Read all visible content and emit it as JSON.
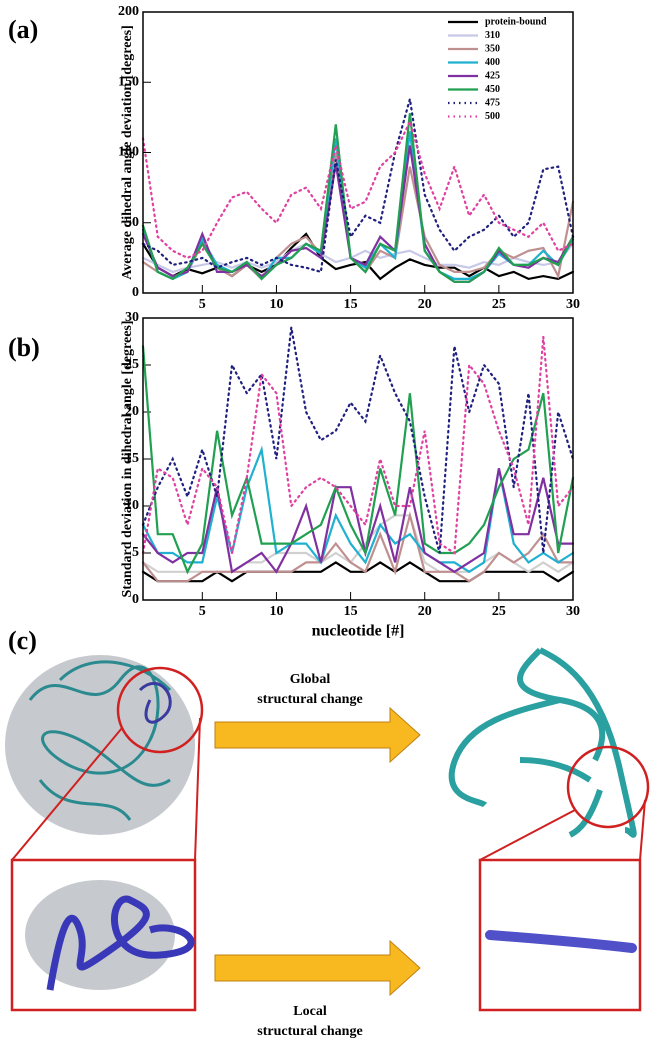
{
  "chart_data": [
    {
      "type": "line",
      "title": "(a)",
      "ylabel": "Average dihedral angle deviation [degrees]",
      "x": [
        1,
        2,
        3,
        4,
        5,
        6,
        7,
        8,
        9,
        10,
        11,
        12,
        13,
        14,
        15,
        16,
        17,
        18,
        19,
        20,
        21,
        22,
        23,
        24,
        25,
        26,
        27,
        28,
        29,
        30
      ],
      "xlim": [
        1,
        30
      ],
      "xticks": [
        5,
        10,
        15,
        20,
        25,
        30
      ],
      "ylim": [
        0,
        200
      ],
      "yticks": [
        0,
        50,
        100,
        150,
        200
      ],
      "legend": "upper right",
      "series": [
        {
          "name": "protein-bound",
          "color": "#000000",
          "style": "solid",
          "values": [
            35,
            18,
            12,
            17,
            14,
            18,
            12,
            20,
            15,
            20,
            32,
            42,
            25,
            17,
            20,
            22,
            10,
            18,
            24,
            20,
            18,
            18,
            12,
            18,
            12,
            15,
            10,
            12,
            10,
            15
          ]
        },
        {
          "name": "310",
          "color": "#c8c8e8",
          "style": "solid",
          "values": [
            25,
            20,
            15,
            18,
            20,
            22,
            18,
            22,
            18,
            22,
            30,
            35,
            28,
            22,
            25,
            30,
            25,
            28,
            30,
            25,
            20,
            20,
            18,
            22,
            20,
            25,
            22,
            20,
            22,
            35
          ]
        },
        {
          "name": "350",
          "color": "#c09090",
          "style": "solid",
          "values": [
            22,
            15,
            10,
            15,
            35,
            18,
            12,
            20,
            10,
            25,
            35,
            40,
            28,
            100,
            25,
            15,
            30,
            25,
            90,
            40,
            20,
            15,
            15,
            18,
            30,
            25,
            30,
            32,
            12,
            65
          ]
        },
        {
          "name": "400",
          "color": "#20b0d0",
          "style": "solid",
          "values": [
            45,
            15,
            10,
            15,
            38,
            20,
            15,
            22,
            10,
            25,
            25,
            35,
            28,
            110,
            25,
            18,
            35,
            25,
            115,
            30,
            15,
            10,
            10,
            15,
            28,
            20,
            20,
            30,
            20,
            38
          ]
        },
        {
          "name": "425",
          "color": "#8030a0",
          "style": "solid",
          "values": [
            42,
            18,
            12,
            15,
            42,
            15,
            15,
            20,
            12,
            20,
            30,
            32,
            25,
            92,
            25,
            20,
            40,
            30,
            105,
            35,
            15,
            8,
            8,
            15,
            30,
            20,
            18,
            25,
            22,
            40
          ]
        },
        {
          "name": "450",
          "color": "#20a050",
          "style": "solid",
          "values": [
            48,
            15,
            10,
            18,
            35,
            18,
            15,
            22,
            10,
            20,
            25,
            35,
            30,
            120,
            25,
            15,
            35,
            30,
            128,
            30,
            15,
            8,
            8,
            15,
            32,
            20,
            20,
            25,
            20,
            40
          ]
        },
        {
          "name": "475",
          "color": "#202080",
          "style": "dotted",
          "values": [
            35,
            30,
            20,
            22,
            25,
            18,
            22,
            25,
            20,
            25,
            20,
            18,
            15,
            95,
            40,
            55,
            50,
            100,
            138,
            70,
            45,
            30,
            40,
            45,
            55,
            40,
            50,
            88,
            90,
            40
          ]
        },
        {
          "name": "500",
          "color": "#e040a0",
          "style": "dotted",
          "values": [
            110,
            40,
            30,
            25,
            30,
            50,
            68,
            72,
            60,
            50,
            70,
            75,
            60,
            105,
            60,
            65,
            90,
            100,
            122,
            85,
            60,
            90,
            55,
            70,
            50,
            45,
            40,
            50,
            30,
            35
          ]
        }
      ]
    },
    {
      "type": "line",
      "title": "(b)",
      "ylabel": "Standard deviation in dihedral angle [degrees]",
      "xlabel": "nucleotide [#]",
      "x": [
        1,
        2,
        3,
        4,
        5,
        6,
        7,
        8,
        9,
        10,
        11,
        12,
        13,
        14,
        15,
        16,
        17,
        18,
        19,
        20,
        21,
        22,
        23,
        24,
        25,
        26,
        27,
        28,
        29,
        30
      ],
      "xlim": [
        1,
        30
      ],
      "xticks": [
        5,
        10,
        15,
        20,
        25,
        30
      ],
      "ylim": [
        0,
        30
      ],
      "yticks": [
        0,
        5,
        10,
        15,
        20,
        25,
        30
      ],
      "series": [
        {
          "name": "protein-bound",
          "color": "#000000",
          "style": "solid",
          "values": [
            3,
            2,
            2,
            2,
            2,
            3,
            2,
            3,
            3,
            3,
            3,
            3,
            3,
            4,
            3,
            3,
            4,
            3,
            4,
            3,
            2,
            2,
            2,
            3,
            3,
            3,
            3,
            3,
            2,
            3
          ]
        },
        {
          "name": "310",
          "color": "#d0d0d0",
          "style": "solid",
          "values": [
            4,
            3,
            3,
            3,
            3,
            3,
            3,
            4,
            4,
            5,
            5,
            5,
            4,
            5,
            4,
            6,
            8,
            9,
            9,
            4,
            3,
            3,
            3,
            4,
            5,
            4,
            3,
            4,
            3,
            4
          ]
        },
        {
          "name": "350",
          "color": "#c09090",
          "style": "solid",
          "values": [
            4,
            2,
            2,
            2,
            3,
            3,
            3,
            3,
            3,
            3,
            3,
            4,
            4,
            6,
            4,
            3,
            7,
            3,
            9,
            3,
            3,
            3,
            2,
            3,
            5,
            4,
            5,
            7,
            4,
            4
          ]
        },
        {
          "name": "400",
          "color": "#20b0d0",
          "style": "solid",
          "values": [
            8,
            5,
            5,
            4,
            4,
            11,
            5,
            12,
            16,
            5,
            6,
            6,
            4,
            9,
            6,
            4,
            8,
            6,
            7,
            5,
            4,
            4,
            3,
            4,
            14,
            6,
            4,
            5,
            4,
            5
          ]
        },
        {
          "name": "425",
          "color": "#8030a0",
          "style": "solid",
          "values": [
            7,
            5,
            4,
            5,
            5,
            12,
            3,
            4,
            5,
            3,
            6,
            10,
            4,
            12,
            12,
            5,
            10,
            4,
            12,
            5,
            4,
            3,
            4,
            5,
            14,
            7,
            7,
            13,
            6,
            6
          ]
        },
        {
          "name": "450",
          "color": "#20a050",
          "style": "solid",
          "values": [
            27,
            7,
            7,
            3,
            6,
            18,
            9,
            13,
            6,
            6,
            6,
            7,
            8,
            12,
            8,
            5,
            14,
            9,
            22,
            6,
            5,
            5,
            6,
            8,
            12,
            15,
            16,
            22,
            5,
            13
          ]
        },
        {
          "name": "475",
          "color": "#202080",
          "style": "dotted",
          "values": [
            8,
            12,
            15,
            11,
            16,
            11,
            25,
            22,
            24,
            15,
            29,
            20,
            17,
            18,
            21,
            19,
            26,
            22,
            19,
            11,
            5,
            27,
            20,
            25,
            23,
            12,
            22,
            5,
            20,
            15
          ]
        },
        {
          "name": "500",
          "color": "#e040a0",
          "style": "dotted",
          "values": [
            5,
            14,
            13,
            8,
            14,
            12,
            5,
            13,
            24,
            22,
            10,
            12,
            13,
            12,
            10,
            8,
            15,
            10,
            10,
            18,
            6,
            5,
            25,
            23,
            18,
            14,
            8,
            28,
            10,
            12
          ]
        }
      ]
    }
  ],
  "panel_c": {
    "label": "(c)",
    "global": [
      "Global",
      "structural change"
    ],
    "local": [
      "Local",
      "structural change"
    ]
  }
}
